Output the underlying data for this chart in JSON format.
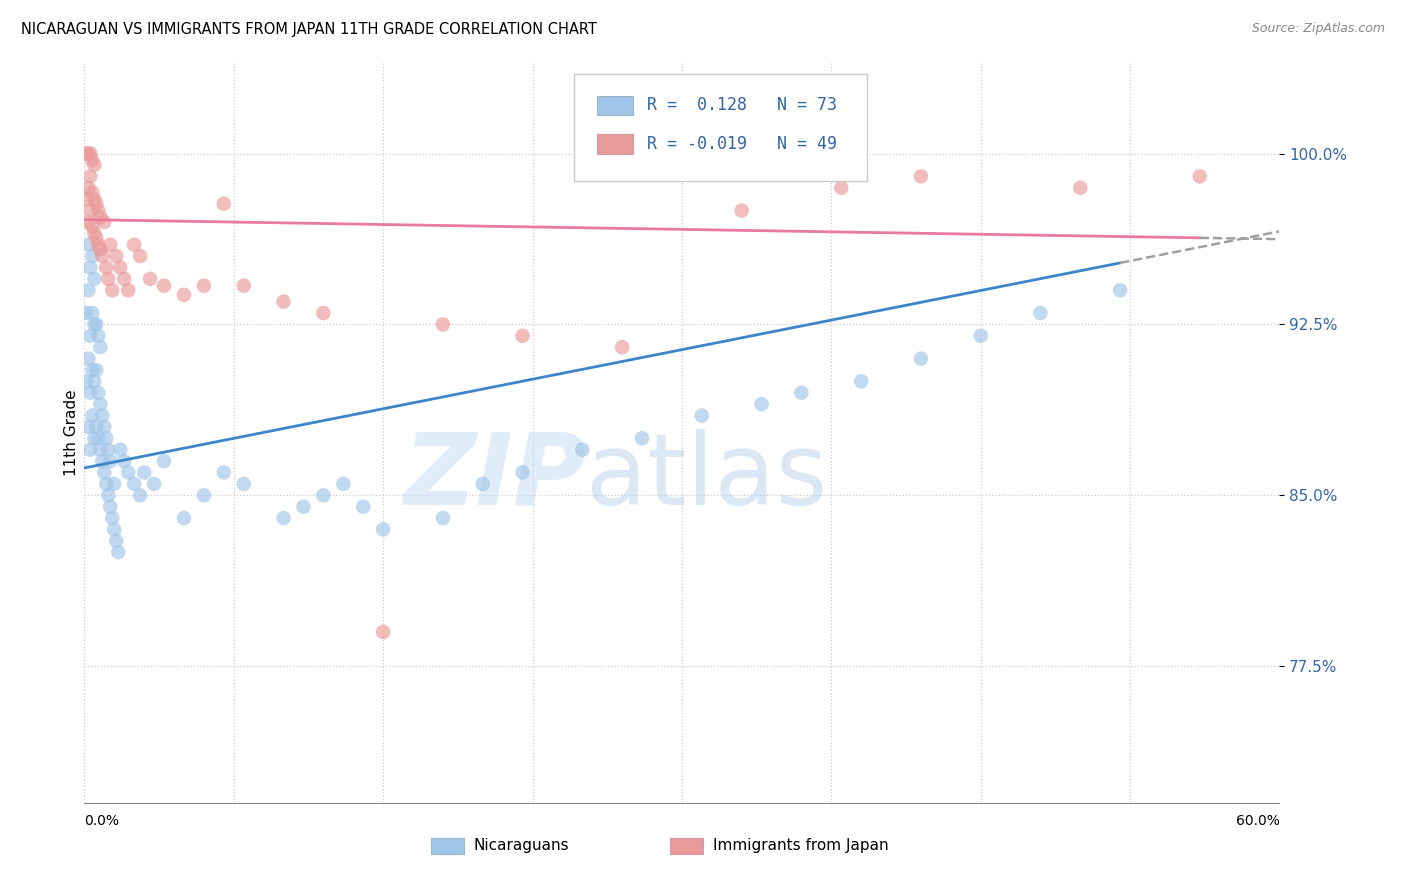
{
  "title": "NICARAGUAN VS IMMIGRANTS FROM JAPAN 11TH GRADE CORRELATION CHART",
  "source": "Source: ZipAtlas.com",
  "ylabel": "11th Grade",
  "ytick_vals": [
    0.775,
    0.85,
    0.925,
    1.0
  ],
  "ytick_labels": [
    "77.5%",
    "85.0%",
    "92.5%",
    "100.0%"
  ],
  "xlim": [
    0.0,
    0.6
  ],
  "ylim": [
    0.715,
    1.04
  ],
  "r_blue": 0.128,
  "n_blue": 73,
  "r_pink": -0.019,
  "n_pink": 49,
  "blue_color": "#9fc5e8",
  "pink_color": "#ea9999",
  "trend_blue": "#3d85c8",
  "trend_pink": "#e879a0",
  "watermark_zip": "ZIP",
  "watermark_atlas": "atlas",
  "legend_label_blue": "Nicaraguans",
  "legend_label_pink": "Immigrants from Japan",
  "blue_x": [
    0.001,
    0.001,
    0.002,
    0.002,
    0.002,
    0.002,
    0.003,
    0.003,
    0.003,
    0.003,
    0.004,
    0.004,
    0.004,
    0.004,
    0.005,
    0.005,
    0.005,
    0.005,
    0.006,
    0.006,
    0.006,
    0.007,
    0.007,
    0.007,
    0.008,
    0.008,
    0.008,
    0.009,
    0.009,
    0.01,
    0.01,
    0.011,
    0.011,
    0.012,
    0.012,
    0.013,
    0.013,
    0.014,
    0.015,
    0.015,
    0.016,
    0.017,
    0.018,
    0.02,
    0.022,
    0.025,
    0.028,
    0.03,
    0.035,
    0.04,
    0.05,
    0.06,
    0.07,
    0.08,
    0.1,
    0.11,
    0.12,
    0.13,
    0.14,
    0.15,
    0.18,
    0.2,
    0.22,
    0.25,
    0.28,
    0.31,
    0.34,
    0.36,
    0.39,
    0.42,
    0.45,
    0.48,
    0.52
  ],
  "blue_y": [
    0.9,
    0.93,
    0.88,
    0.91,
    0.94,
    0.96,
    0.87,
    0.895,
    0.92,
    0.95,
    0.885,
    0.905,
    0.93,
    0.955,
    0.875,
    0.9,
    0.925,
    0.945,
    0.88,
    0.905,
    0.925,
    0.875,
    0.895,
    0.92,
    0.87,
    0.89,
    0.915,
    0.865,
    0.885,
    0.86,
    0.88,
    0.855,
    0.875,
    0.85,
    0.87,
    0.845,
    0.865,
    0.84,
    0.835,
    0.855,
    0.83,
    0.825,
    0.87,
    0.865,
    0.86,
    0.855,
    0.85,
    0.86,
    0.855,
    0.865,
    0.84,
    0.85,
    0.86,
    0.855,
    0.84,
    0.845,
    0.85,
    0.855,
    0.845,
    0.835,
    0.84,
    0.855,
    0.86,
    0.87,
    0.875,
    0.885,
    0.89,
    0.895,
    0.9,
    0.91,
    0.92,
    0.93,
    0.94
  ],
  "pink_x": [
    0.001,
    0.001,
    0.002,
    0.002,
    0.002,
    0.003,
    0.003,
    0.003,
    0.004,
    0.004,
    0.004,
    0.005,
    0.005,
    0.005,
    0.006,
    0.006,
    0.007,
    0.007,
    0.008,
    0.008,
    0.009,
    0.01,
    0.011,
    0.012,
    0.013,
    0.014,
    0.016,
    0.018,
    0.02,
    0.022,
    0.025,
    0.028,
    0.033,
    0.04,
    0.05,
    0.06,
    0.07,
    0.08,
    0.1,
    0.12,
    0.15,
    0.18,
    0.22,
    0.27,
    0.33,
    0.38,
    0.42,
    0.5,
    0.56
  ],
  "pink_y": [
    0.98,
    1.0,
    0.97,
    0.985,
    1.0,
    0.975,
    0.99,
    1.0,
    0.968,
    0.983,
    0.997,
    0.965,
    0.98,
    0.995,
    0.963,
    0.978,
    0.96,
    0.975,
    0.958,
    0.972,
    0.955,
    0.97,
    0.95,
    0.945,
    0.96,
    0.94,
    0.955,
    0.95,
    0.945,
    0.94,
    0.96,
    0.955,
    0.945,
    0.942,
    0.938,
    0.942,
    0.978,
    0.942,
    0.935,
    0.93,
    0.79,
    0.925,
    0.92,
    0.915,
    0.975,
    0.985,
    0.99,
    0.985,
    0.99
  ],
  "blue_trend_x0": 0.0,
  "blue_trend_y0": 0.862,
  "blue_trend_x1": 0.52,
  "blue_trend_y1": 0.952,
  "pink_trend_x0": 0.0,
  "pink_trend_y0": 0.971,
  "pink_trend_x1": 0.56,
  "pink_trend_y1": 0.963
}
